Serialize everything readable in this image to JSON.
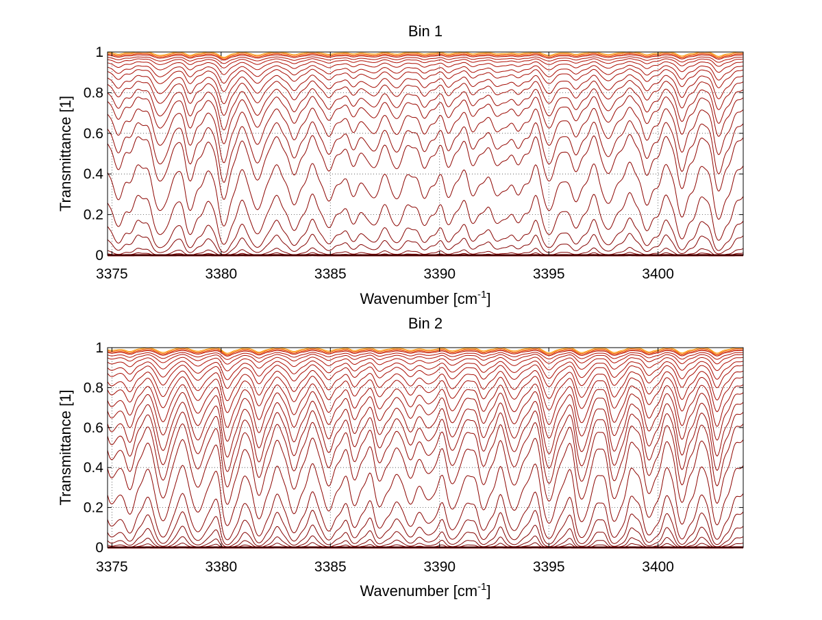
{
  "figure": {
    "background": "#ffffff",
    "line_color_dark": "#8b0000",
    "line_color_light": "#ff8c00"
  },
  "chart_data": [
    {
      "type": "line",
      "title": "Bin 1",
      "xlabel": "Wavenumber [cm",
      "xlabel_sup": "-1",
      "xlabel_close": "]",
      "ylabel": "Transmittance [1]",
      "xlim": [
        3374.8,
        3403.9
      ],
      "ylim": [
        0,
        1
      ],
      "xticks": [
        3375,
        3380,
        3385,
        3390,
        3395,
        3400
      ],
      "yticks": [
        0,
        0.2,
        0.4,
        0.6,
        0.8,
        1
      ],
      "ytick_labels": [
        "0",
        "0.2",
        "0.4",
        "0.6",
        "0.8",
        "1"
      ],
      "grid": "dotted",
      "legend": "none",
      "series_baselines": [
        0.0,
        0.01,
        0.03,
        0.09,
        0.16,
        0.28,
        0.43,
        0.57,
        0.64,
        0.71,
        0.77,
        0.81,
        0.85,
        0.88,
        0.91,
        0.93,
        0.95,
        0.965,
        0.975,
        0.985,
        0.99,
        0.995,
        1.0
      ],
      "absorption_lines": [
        {
          "x": 3375.3,
          "strength": 0.35
        },
        {
          "x": 3377.2,
          "strength": 0.6
        },
        {
          "x": 3378.6,
          "strength": 0.5
        },
        {
          "x": 3380.1,
          "strength": 0.85
        },
        {
          "x": 3381.6,
          "strength": 0.55
        },
        {
          "x": 3383.3,
          "strength": 0.45
        },
        {
          "x": 3384.9,
          "strength": 0.4
        },
        {
          "x": 3386.0,
          "strength": 0.3
        },
        {
          "x": 3386.9,
          "strength": 0.35
        },
        {
          "x": 3388.0,
          "strength": 0.35
        },
        {
          "x": 3389.3,
          "strength": 0.35
        },
        {
          "x": 3390.4,
          "strength": 0.3
        },
        {
          "x": 3391.6,
          "strength": 0.3
        },
        {
          "x": 3392.7,
          "strength": 0.35
        },
        {
          "x": 3393.6,
          "strength": 0.3
        },
        {
          "x": 3395.0,
          "strength": 0.55
        },
        {
          "x": 3396.2,
          "strength": 0.4
        },
        {
          "x": 3397.7,
          "strength": 0.45
        },
        {
          "x": 3399.5,
          "strength": 0.45
        },
        {
          "x": 3401.1,
          "strength": 0.65
        },
        {
          "x": 3402.8,
          "strength": 0.7
        }
      ]
    },
    {
      "type": "line",
      "title": "Bin 2",
      "xlabel": "Wavenumber [cm",
      "xlabel_sup": "-1",
      "xlabel_close": "]",
      "ylabel": "Transmittance [1]",
      "xlim": [
        3374.8,
        3403.9
      ],
      "ylim": [
        0,
        1
      ],
      "xticks": [
        3375,
        3380,
        3385,
        3390,
        3395,
        3400
      ],
      "yticks": [
        0,
        0.2,
        0.4,
        0.6,
        0.8,
        1
      ],
      "ytick_labels": [
        "0",
        "0.2",
        "0.4",
        "0.6",
        "0.8",
        "1"
      ],
      "grid": "dotted",
      "legend": "none",
      "series_baselines": [
        0.0,
        0.02,
        0.05,
        0.1,
        0.17,
        0.26,
        0.4,
        0.53,
        0.61,
        0.67,
        0.72,
        0.77,
        0.81,
        0.85,
        0.88,
        0.91,
        0.93,
        0.95,
        0.965,
        0.975,
        0.985,
        0.99,
        0.995,
        1.0
      ],
      "absorption_lines": [
        {
          "x": 3375.0,
          "strength": 0.45
        },
        {
          "x": 3375.8,
          "strength": 0.6
        },
        {
          "x": 3377.3,
          "strength": 0.85
        },
        {
          "x": 3378.9,
          "strength": 0.65
        },
        {
          "x": 3380.3,
          "strength": 0.95
        },
        {
          "x": 3381.7,
          "strength": 0.75
        },
        {
          "x": 3383.3,
          "strength": 0.65
        },
        {
          "x": 3384.9,
          "strength": 0.6
        },
        {
          "x": 3386.1,
          "strength": 0.45
        },
        {
          "x": 3387.3,
          "strength": 0.5
        },
        {
          "x": 3388.6,
          "strength": 0.45
        },
        {
          "x": 3389.5,
          "strength": 0.4
        },
        {
          "x": 3390.6,
          "strength": 0.55
        },
        {
          "x": 3392.0,
          "strength": 0.55
        },
        {
          "x": 3393.4,
          "strength": 0.6
        },
        {
          "x": 3395.0,
          "strength": 0.9
        },
        {
          "x": 3396.5,
          "strength": 0.85
        },
        {
          "x": 3398.0,
          "strength": 0.85
        },
        {
          "x": 3399.6,
          "strength": 0.75
        },
        {
          "x": 3401.1,
          "strength": 0.9
        },
        {
          "x": 3402.7,
          "strength": 0.9
        }
      ]
    }
  ]
}
